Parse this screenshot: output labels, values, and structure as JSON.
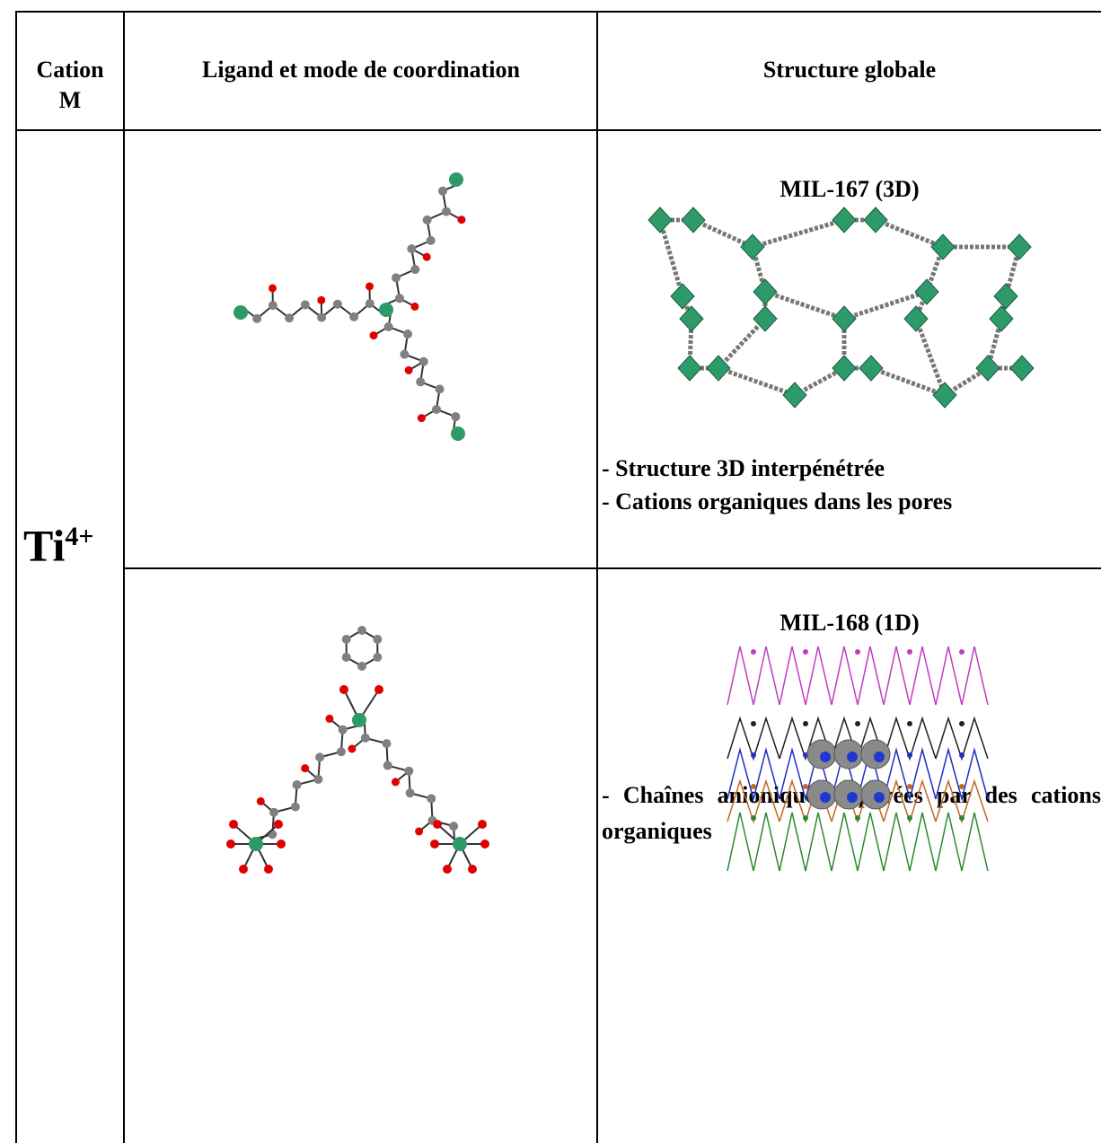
{
  "table": {
    "header": [
      "Cation M",
      "Ligand et mode de coordination",
      "Structure globale"
    ],
    "cation": {
      "symbol": "Ti",
      "charge": "4+"
    },
    "rows": [
      {
        "title": "MIL-167 (3D)",
        "notes": [
          "- Structure 3D interpénétrée",
          "- Cations organiques dans les pores"
        ]
      },
      {
        "title": "MIL-168 (1D)",
        "notes": [
          "- Chaînes anioniques séparées par des cations organiques"
        ]
      }
    ]
  }
}
